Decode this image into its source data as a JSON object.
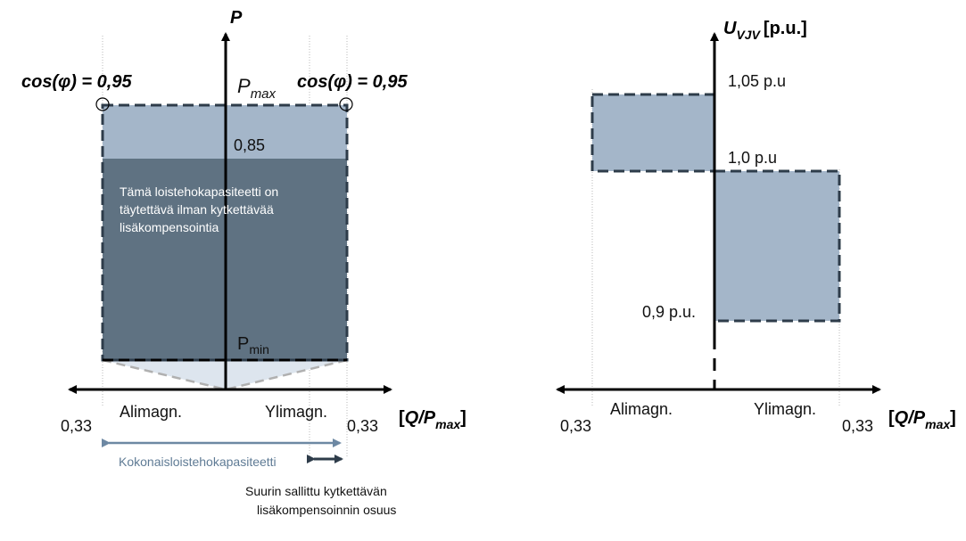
{
  "left_diagram": {
    "p_axis": "P",
    "cos_left": "cos(φ) = 0,95",
    "cos_right": "cos(φ) = 0,95",
    "pmax_base": "P",
    "pmax_sub": "max",
    "level_085": "0,85",
    "region_text_1": "Tämä loistehokapasiteetti on",
    "region_text_2": "täytettävä ilman kytkettävää",
    "region_text_3": "lisäkompensointia",
    "pmin_base": "P",
    "pmin_sub": "min",
    "alimagn": "Alimagn.",
    "ylimagn": "Ylimagn.",
    "q_left": "0,33",
    "q_right": "0,33",
    "x_axis_open": "[",
    "x_axis_q": "Q/P",
    "x_axis_sub": "max",
    "x_axis_close": "]",
    "total_capacity": "Kokonaisloistehokapasiteetti",
    "switchable_line1": "Suurin sallittu kytkettävän",
    "switchable_line2": "lisäkompensoinnin osuus"
  },
  "right_diagram": {
    "u_base": "U",
    "u_sub": "VJV",
    "u_unit": "[p.u.]",
    "u_105": "1,05 p.u",
    "u_10": "1,0 p.u",
    "u_09": "0,9 p.u.",
    "alimagn": "Alimagn.",
    "ylimagn": "Ylimagn.",
    "q_left": "0,33",
    "q_right": "0,33",
    "x_axis_open": "[",
    "x_axis_q": "Q/P",
    "x_axis_sub": "max",
    "x_axis_close": "]"
  },
  "colors": {
    "light_fill": "#a4b6c9",
    "dark_fill": "#5f7282",
    "triangle_fill": "#dde5ee",
    "dash_stroke": "#2e3c4a",
    "blue_arrow": "#6d88a3"
  }
}
